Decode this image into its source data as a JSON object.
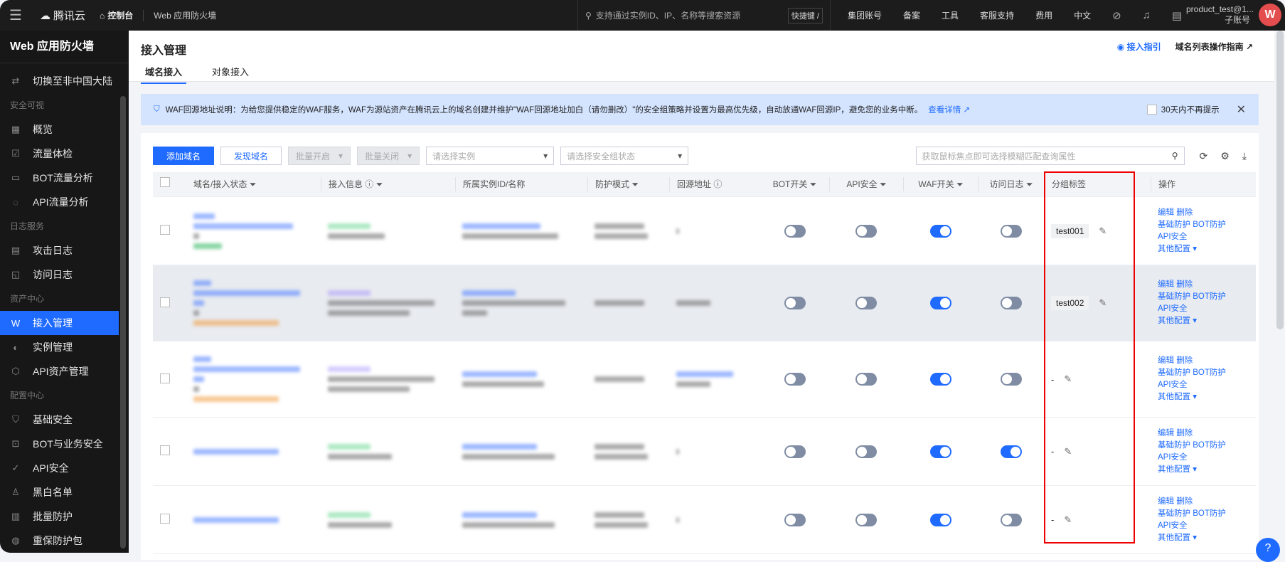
{
  "topbar": {
    "brand": "腾讯云",
    "console": "控制台",
    "product": "Web 应用防火墙",
    "search_placeholder": "支持通过实例ID、IP、名称等搜索资源",
    "shortcut": "快捷键 /",
    "nav": [
      "集团账号",
      "备案",
      "工具",
      "客服支持",
      "费用",
      "中文"
    ],
    "user": "product_test@1...",
    "user_role": "子账号",
    "avatar": "W"
  },
  "sidebar": {
    "title": "Web 应用防火墙",
    "switch": "切换至非中国大陆",
    "groups": [
      {
        "label": "安全可视",
        "items": [
          {
            "label": "概览",
            "icon": "grid-icon"
          },
          {
            "label": "流量体检",
            "icon": "check-icon"
          },
          {
            "label": "BOT流量分析",
            "icon": "monitor-icon"
          },
          {
            "label": "API流量分析",
            "icon": "chart-icon"
          }
        ]
      },
      {
        "label": "日志服务",
        "items": [
          {
            "label": "攻击日志",
            "icon": "log-icon"
          },
          {
            "label": "访问日志",
            "icon": "access-log-icon"
          }
        ]
      },
      {
        "label": "资产中心",
        "items": [
          {
            "label": "接入管理",
            "icon": "waf-icon",
            "active": true
          },
          {
            "label": "实例管理",
            "icon": "instance-icon"
          },
          {
            "label": "API资产管理",
            "icon": "box-icon"
          }
        ]
      },
      {
        "label": "配置中心",
        "items": [
          {
            "label": "基础安全",
            "icon": "shield-icon"
          },
          {
            "label": "BOT与业务安全",
            "icon": "bot-icon"
          },
          {
            "label": "API安全",
            "icon": "shield-check-icon"
          },
          {
            "label": "黑白名单",
            "icon": "user-list-icon"
          },
          {
            "label": "批量防护",
            "icon": "batch-icon"
          },
          {
            "label": "重保防护包",
            "icon": "globe-icon"
          }
        ]
      }
    ]
  },
  "header": {
    "title": "接入管理",
    "tabs": [
      "域名接入",
      "对象接入"
    ],
    "guide": "接入指引",
    "doc": "域名列表操作指南"
  },
  "notice": {
    "text": "WAF回源地址说明：为给您提供稳定的WAF服务，WAF为源站资产在腾讯云上的域名创建并维护\"WAF回源地址加白（请勿删改）\"的安全组策略并设置为最高优先级，自动放通WAF回源IP，避免您的业务中断。",
    "link": "查看详情",
    "dismiss": "30天内不再提示"
  },
  "toolbar": {
    "add": "添加域名",
    "discover": "发现域名",
    "batch_on": "批量开启",
    "batch_off": "批量关闭",
    "instance_placeholder": "请选择实例",
    "sg_placeholder": "请选择安全组状态",
    "search_placeholder": "获取鼠标焦点即可选择模糊匹配查询属性"
  },
  "columns": [
    "域名/接入状态",
    "接入信息",
    "所属实例ID/名称",
    "防护模式",
    "回源地址",
    "BOT开关",
    "API安全",
    "WAF开关",
    "访问日志",
    "分组标签",
    "操作"
  ],
  "ops": {
    "edit": "编辑",
    "delete": "删除",
    "basic": "基础防护",
    "bot": "BOT防护",
    "api": "API安全",
    "more": "其他配置"
  },
  "rows": [
    {
      "bot": false,
      "api": false,
      "waf": true,
      "log": false,
      "tag": "test001"
    },
    {
      "bot": false,
      "api": false,
      "waf": true,
      "log": false,
      "tag": "test002"
    },
    {
      "bot": false,
      "api": false,
      "waf": true,
      "log": false,
      "tag": "-"
    },
    {
      "bot": false,
      "api": false,
      "waf": true,
      "log": true,
      "tag": "-"
    },
    {
      "bot": false,
      "api": false,
      "waf": true,
      "log": false,
      "tag": "-"
    }
  ],
  "colors": {
    "accent": "#1f6bff",
    "topbar": "#1c1c1c",
    "highlight_box": "#e00000",
    "avatar": "#e34d4d"
  }
}
